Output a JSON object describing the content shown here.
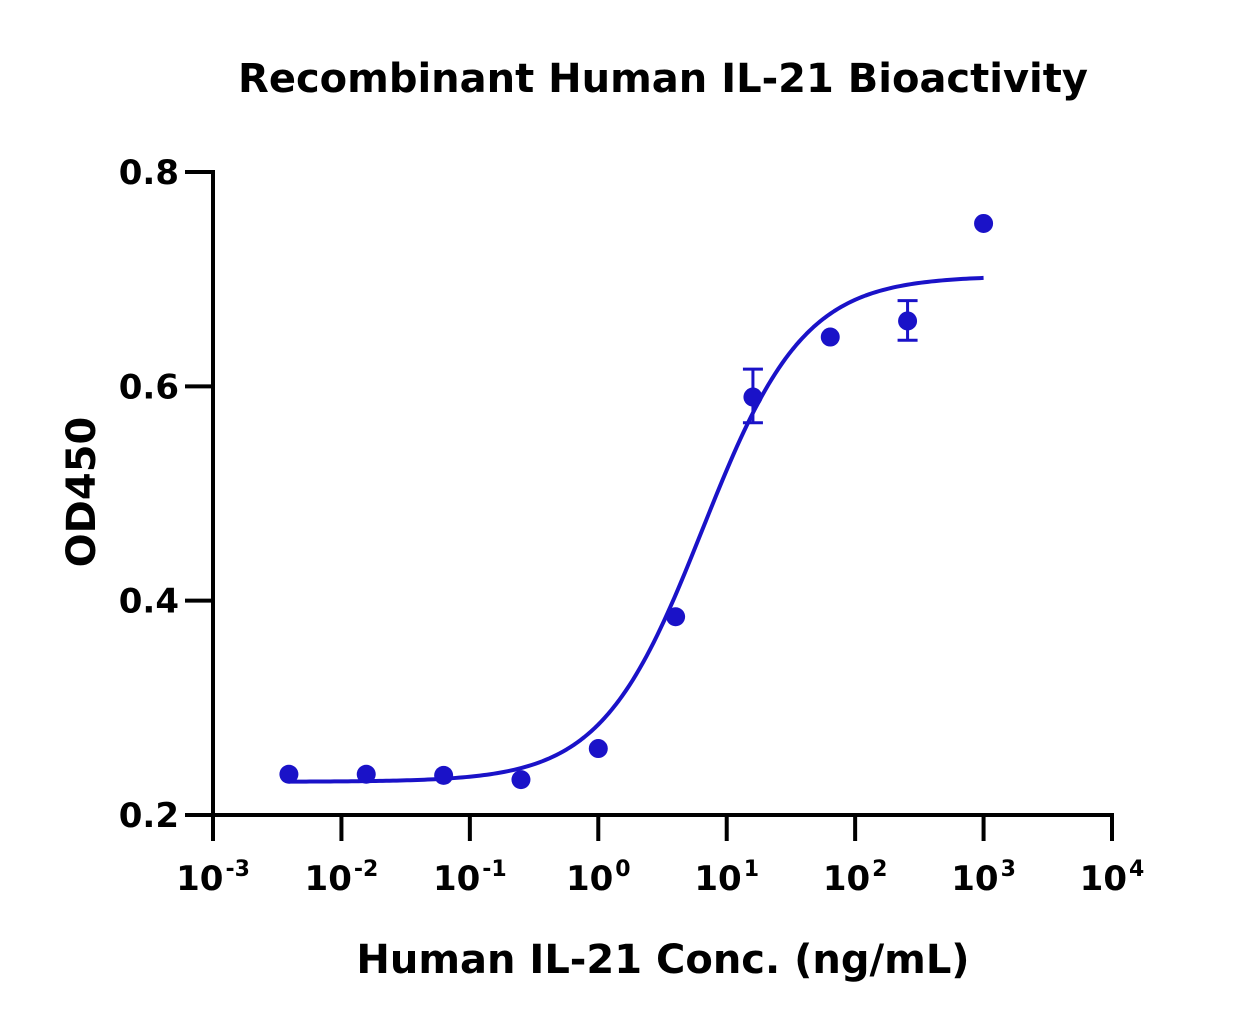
{
  "chart_data": {
    "type": "scatter",
    "title": "Recombinant Human IL-21 Bioactivity",
    "xlabel": "Human IL-21 Conc. (ng/mL)",
    "ylabel": "OD450",
    "x_scale": "log",
    "xlim": [
      0.001,
      10000
    ],
    "ylim": [
      0.2,
      0.8
    ],
    "x_ticks": [
      {
        "base": "10",
        "exp": "-3",
        "value": 0.001
      },
      {
        "base": "10",
        "exp": "-2",
        "value": 0.01
      },
      {
        "base": "10",
        "exp": "-1",
        "value": 0.1
      },
      {
        "base": "10",
        "exp": "0",
        "value": 1
      },
      {
        "base": "10",
        "exp": "1",
        "value": 10
      },
      {
        "base": "10",
        "exp": "2",
        "value": 100
      },
      {
        "base": "10",
        "exp": "3",
        "value": 1000
      },
      {
        "base": "10",
        "exp": "4",
        "value": 10000
      }
    ],
    "y_ticks": [
      {
        "label": "0.2",
        "value": 0.2
      },
      {
        "label": "0.4",
        "value": 0.4
      },
      {
        "label": "0.6",
        "value": 0.6
      },
      {
        "label": "0.8",
        "value": 0.8
      }
    ],
    "grid": false,
    "color": "#1a12c8",
    "points": [
      {
        "x": 0.0039,
        "y": 0.238
      },
      {
        "x": 0.0156,
        "y": 0.238
      },
      {
        "x": 0.0625,
        "y": 0.237
      },
      {
        "x": 0.25,
        "y": 0.233
      },
      {
        "x": 1,
        "y": 0.262
      },
      {
        "x": 4,
        "y": 0.385
      },
      {
        "x": 16,
        "y": 0.59,
        "err_low": 0.566,
        "err_high": 0.616
      },
      {
        "x": 64,
        "y": 0.646
      },
      {
        "x": 256,
        "y": 0.661,
        "err_low": 0.643,
        "err_high": 0.68
      },
      {
        "x": 1000,
        "y": 0.752
      }
    ],
    "fit": {
      "model": "4PL",
      "bottom": 0.231,
      "top": 0.703,
      "ec50": 6.5,
      "hill": 1.1,
      "x_range": [
        0.0039,
        1000
      ]
    }
  }
}
